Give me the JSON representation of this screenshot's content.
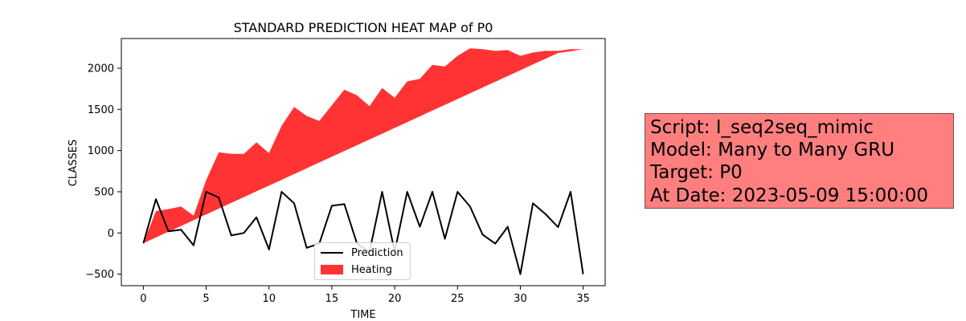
{
  "chart_data": {
    "type": "line",
    "title": "STANDARD PREDICTION HEAT MAP of P0",
    "xlabel": "TIME",
    "ylabel": "CLASSES",
    "xlim": [
      -1.75,
      36.75
    ],
    "ylim": [
      -640,
      2360
    ],
    "xticks": [
      0,
      5,
      10,
      15,
      20,
      25,
      30,
      35
    ],
    "yticks": [
      -500,
      0,
      500,
      1000,
      1500,
      2000
    ],
    "legend_placement": "lower center",
    "grid": false,
    "series": [
      {
        "name": "Prediction",
        "kind": "line",
        "color": "#000000",
        "x": [
          0,
          1,
          2,
          3,
          4,
          5,
          6,
          7,
          8,
          9,
          10,
          11,
          12,
          13,
          14,
          15,
          16,
          17,
          18,
          19,
          20,
          21,
          22,
          23,
          24,
          25,
          26,
          27,
          28,
          29,
          30,
          31,
          32,
          33,
          34,
          35
        ],
        "y": [
          -125,
          410,
          20,
          40,
          -150,
          500,
          430,
          -30,
          0,
          190,
          -200,
          500,
          360,
          -180,
          -130,
          330,
          350,
          -130,
          -230,
          500,
          -230,
          500,
          75,
          500,
          -70,
          500,
          320,
          -20,
          -130,
          75,
          -500,
          360,
          230,
          70,
          500,
          -500
        ]
      },
      {
        "name": "Heating",
        "kind": "fill_between",
        "color": "#ff0000",
        "alpha": 0.8,
        "x": [
          0,
          1,
          2,
          3,
          4,
          5,
          6,
          7,
          8,
          9,
          10,
          11,
          12,
          13,
          14,
          15,
          16,
          17,
          18,
          19,
          20,
          21,
          22,
          23,
          24,
          25,
          26,
          27,
          28,
          29,
          30,
          31,
          32,
          33,
          34,
          35
        ],
        "upper": [
          -125,
          265,
          290,
          320,
          210,
          640,
          980,
          960,
          960,
          1100,
          970,
          1300,
          1530,
          1420,
          1360,
          1550,
          1740,
          1670,
          1540,
          1760,
          1640,
          1840,
          1870,
          2040,
          2020,
          2150,
          2240,
          2230,
          2210,
          2220,
          2150,
          2190,
          2210,
          2210,
          2230,
          2230
        ],
        "lower": [
          -125,
          -55,
          15,
          85,
          155,
          225,
          295,
          365,
          435,
          505,
          575,
          645,
          715,
          785,
          855,
          925,
          995,
          1065,
          1135,
          1205,
          1275,
          1345,
          1415,
          1485,
          1555,
          1625,
          1695,
          1765,
          1835,
          1905,
          1975,
          2045,
          2115,
          2185,
          2205,
          2230
        ]
      }
    ]
  },
  "info_box": {
    "lines": [
      "Script: I_seq2seq_mimic",
      "Model: Many to Many GRU",
      "Target: P0",
      "At Date: 2023-05-09 15:00:00"
    ]
  }
}
